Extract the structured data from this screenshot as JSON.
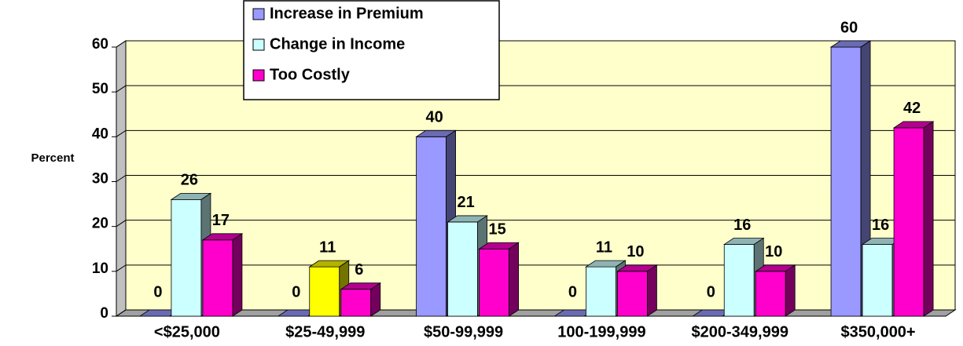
{
  "chart_data": {
    "type": "bar3d",
    "ylabel": "Percent",
    "categories": [
      "<$25,000",
      "$25-49,999",
      "$50-99,999",
      "100-199,999",
      "$200-349,999",
      "$350,000+"
    ],
    "series": [
      {
        "name": "Increase in Premium",
        "color": "#9999ff",
        "values": [
          0,
          0,
          40,
          0,
          0,
          60
        ]
      },
      {
        "name": "Change in Income",
        "color": "#ccffff",
        "colors": [
          "#ccffff",
          "#ffff00",
          "#ccffff",
          "#ccffff",
          "#ccffff",
          "#ccffff"
        ],
        "values": [
          26,
          11,
          21,
          11,
          16,
          16
        ]
      },
      {
        "name": "Too Costly",
        "color": "#ff00cc",
        "values": [
          17,
          6,
          15,
          10,
          10,
          42
        ]
      }
    ],
    "ylim": [
      0,
      60
    ],
    "yticks": [
      0,
      10,
      20,
      30,
      40,
      50,
      60
    ],
    "grid": true,
    "wall_color": "#ffffcc"
  }
}
